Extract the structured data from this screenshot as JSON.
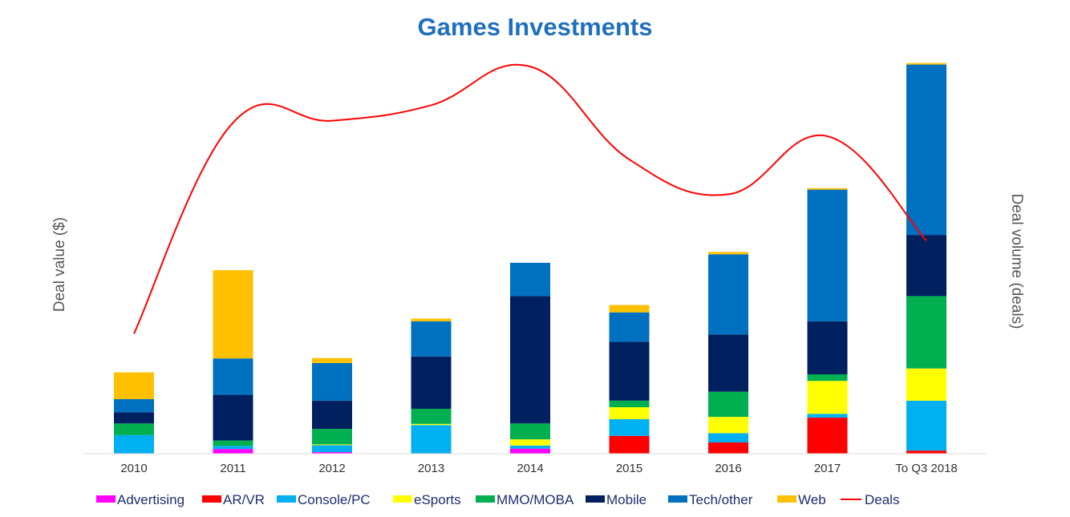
{
  "chart_data": {
    "type": "bar",
    "stacked": true,
    "title": "Games Investments",
    "ylabel": "Deal value ($)",
    "y2label": "Deal volume (deals)",
    "xlabel": "",
    "categories": [
      "2010",
      "2011",
      "2012",
      "2013",
      "2014",
      "2015",
      "2016",
      "2017",
      "To Q3 2018"
    ],
    "ylim": [
      0,
      100
    ],
    "y2lim": [
      0,
      100
    ],
    "legend_position": "bottom",
    "series": [
      {
        "name": "Advertising",
        "color": "#ff00ff",
        "values": [
          0,
          1.2,
          0.4,
          0,
          1.3,
          0,
          0,
          0,
          0
        ]
      },
      {
        "name": "AR/VR",
        "color": "#ff0000",
        "values": [
          0,
          0,
          0,
          0,
          0,
          4.6,
          2.9,
          9.3,
          0.8
        ]
      },
      {
        "name": "Console/PC",
        "color": "#00b0f0",
        "values": [
          4.8,
          0.8,
          1.8,
          7.4,
          0.8,
          4.3,
          2.4,
          1.0,
          12.9
        ]
      },
      {
        "name": "eSports",
        "color": "#ffff00",
        "values": [
          0,
          0,
          0.2,
          0.3,
          1.6,
          3.1,
          4.2,
          8.5,
          8.3
        ]
      },
      {
        "name": "MMO/MOBA",
        "color": "#00b050",
        "values": [
          3.0,
          1.4,
          4.0,
          3.9,
          4.1,
          1.7,
          6.5,
          1.7,
          18.7
        ]
      },
      {
        "name": "Mobile",
        "color": "#002060",
        "values": [
          2.9,
          11.8,
          7.3,
          13.5,
          32.9,
          15.2,
          14.8,
          13.7,
          15.8
        ]
      },
      {
        "name": "Tech/other",
        "color": "#0070c0",
        "values": [
          3.4,
          9.4,
          9.7,
          9.1,
          8.6,
          7.6,
          20.7,
          34.0,
          44.0
        ]
      },
      {
        "name": "Web",
        "color": "#ffc000",
        "values": [
          6.9,
          22.8,
          1.3,
          0.7,
          0,
          1.9,
          0.6,
          0.4,
          0.4
        ]
      }
    ],
    "line": {
      "name": "Deals",
      "color": "#ff0000",
      "axis": "secondary",
      "values": [
        31,
        85.5,
        86,
        90,
        100,
        76,
        67,
        82,
        55
      ]
    }
  }
}
